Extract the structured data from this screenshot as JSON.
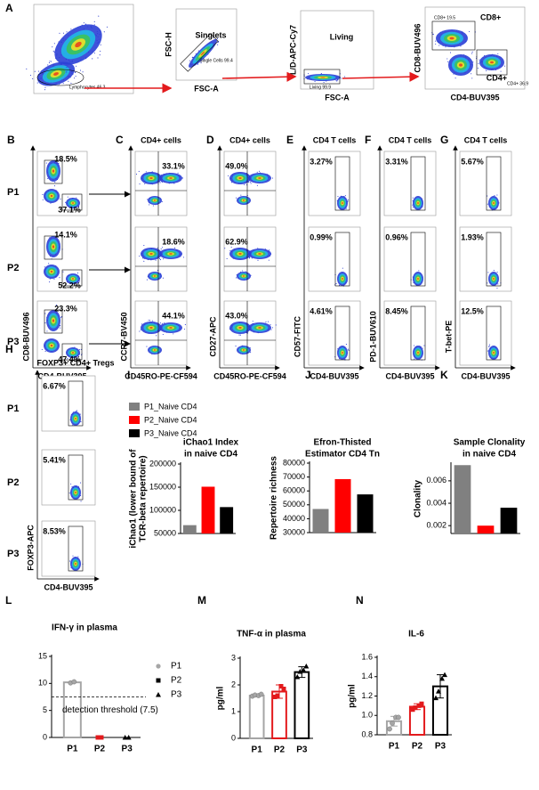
{
  "panel_a": {
    "letter": "A",
    "plots": [
      {
        "gate": "Lymphocytes 46.3"
      },
      {
        "title": "Singlets",
        "ylabel": "FSC-H",
        "xlabel": "FSC-A",
        "gate": "Single Cells 99.4"
      },
      {
        "title": "Living",
        "ylabel": "L/D-APC-Cy7",
        "xlabel": "FSC-A",
        "gate": "Living 99.9"
      },
      {
        "ylabel": "CD8-BUV496",
        "xlabel": "CD4-BUV395",
        "gates": [
          "CD8+ 19.5",
          "CD4+ 36.9"
        ],
        "populations": [
          "CD8+",
          "CD4+"
        ]
      }
    ]
  },
  "rows": [
    "P1",
    "P2",
    "P3"
  ],
  "highlight": {
    "row": 1,
    "color": "#e31a1c"
  },
  "panels": [
    {
      "letter": "B",
      "ylabel": "CD8-BUV496",
      "xlabel": "CD4-BUV395",
      "labels": [
        [
          "18.5%",
          "37.1%"
        ],
        [
          "14.1%",
          "52.2%"
        ],
        [
          "23.3%",
          "47.4%"
        ]
      ]
    },
    {
      "letter": "C",
      "title": "CD4+ cells",
      "ylabel": "CCR7-BV450",
      "xlabel": "CD45RO-PE-CF594",
      "labels": [
        [
          "33.1%"
        ],
        [
          "18.6%"
        ],
        [
          "44.1%"
        ]
      ]
    },
    {
      "letter": "D",
      "title": "CD4+ cells",
      "ylabel": "CD27-APC",
      "xlabel": "CD45RO-PE-CF594",
      "labels": [
        [
          "49.0%"
        ],
        [
          "62.9%"
        ],
        [
          "43.0%"
        ]
      ]
    },
    {
      "letter": "E",
      "title": "CD4 T cells",
      "ylabel": "CD57-FITC",
      "xlabel": "CD4-BUV395",
      "labels": [
        [
          "3.27%"
        ],
        [
          "0.99%"
        ],
        [
          "4.61%"
        ]
      ]
    },
    {
      "letter": "F",
      "title": "CD4 T cells",
      "ylabel": "PD-1-BUV610",
      "xlabel": "CD4-BUV395",
      "labels": [
        [
          "3.31%"
        ],
        [
          "0.96%"
        ],
        [
          "8.45%"
        ]
      ]
    },
    {
      "letter": "G",
      "title": "CD4 T cells",
      "ylabel": "T-bet-PE",
      "xlabel": "CD4-BUV395",
      "labels": [
        [
          "5.67%"
        ],
        [
          "1.93%"
        ],
        [
          "12.5%"
        ]
      ]
    },
    {
      "letter": "H",
      "title": "FOXP3+ CD4+ Tregs",
      "ylabel": "FOXP3-APC",
      "xlabel": "CD4-BUV395",
      "labels": [
        [
          "6.67%"
        ],
        [
          "5.41%"
        ],
        [
          "8.53%"
        ]
      ]
    }
  ],
  "chart_data": [
    {
      "type": "bar",
      "letter": "I",
      "title": [
        "iChao1 Index",
        "in naive CD4"
      ],
      "ylabel": [
        "iChao1 (lower bound of",
        "TCR-beta repertoire)"
      ],
      "values": [
        68000,
        151000,
        107000
      ],
      "colors": [
        "#808080",
        "#ff0000",
        "#000000"
      ],
      "filled": true,
      "ylim": [
        50000,
        200000
      ],
      "yticks": [
        50000,
        100000,
        150000,
        200000
      ],
      "legend": [
        {
          "name": "P1_Naive CD4",
          "color": "#808080"
        },
        {
          "name": "P2_Naive CD4",
          "color": "#ff0000"
        },
        {
          "name": "P3_Naive CD4",
          "color": "#000000"
        }
      ]
    },
    {
      "type": "bar",
      "letter": "J",
      "title": [
        "Efron-Thisted",
        "Estimator CD4 Tn"
      ],
      "ylabel": [
        "Repertoire richness"
      ],
      "values": [
        47000,
        68500,
        57500
      ],
      "colors": [
        "#808080",
        "#ff0000",
        "#000000"
      ],
      "filled": true,
      "ylim": [
        30000,
        80000
      ],
      "yticks": [
        30000,
        40000,
        50000,
        60000,
        70000,
        80000
      ]
    },
    {
      "type": "bar",
      "letter": "K",
      "title": [
        "Sample Clonality",
        "in naive CD4"
      ],
      "ylabel": [
        "Clonality"
      ],
      "values": [
        0.0074,
        0.002,
        0.0036
      ],
      "colors": [
        "#808080",
        "#ff0000",
        "#000000"
      ],
      "filled": true,
      "ylim": [
        0.0013,
        0.0075
      ],
      "yticks": [
        0.002,
        0.004,
        0.006
      ]
    },
    {
      "type": "bar",
      "letter": "L",
      "title": [
        "IFN-γ in plasma"
      ],
      "categories": [
        "P1",
        "P2",
        "P3"
      ],
      "values": [
        10.2,
        0,
        0
      ],
      "errors": [
        0.15,
        0,
        0
      ],
      "points": [
        [
          10.1,
          10.3
        ],
        [
          0,
          0
        ],
        [
          0,
          0
        ]
      ],
      "colors": [
        "#a6a6a6",
        "#e31a1c",
        "#000000"
      ],
      "filled": false,
      "markers": [
        "circle",
        "square",
        "triangle"
      ],
      "ylim": [
        0,
        15
      ],
      "yticks": [
        0,
        5,
        10,
        15
      ],
      "threshold": 7.5,
      "threshold_label": "detection threshold (7.5)",
      "legend": [
        "P1",
        "P2",
        "P3"
      ]
    },
    {
      "type": "bar",
      "letter": "M",
      "title": [
        "TNF-α in plasma"
      ],
      "ylabel": [
        "pg/ml"
      ],
      "categories": [
        "P1",
        "P2",
        "P3"
      ],
      "values": [
        1.6,
        1.75,
        2.48
      ],
      "errors": [
        0.05,
        0.25,
        0.2
      ],
      "points": [
        [
          1.58,
          1.62,
          1.6,
          1.65
        ],
        [
          1.55,
          1.6,
          1.95,
          1.85
        ],
        [
          2.3,
          2.5,
          2.55,
          2.7
        ]
      ],
      "colors": [
        "#a6a6a6",
        "#e31a1c",
        "#000000"
      ],
      "filled": false,
      "markers": [
        "circle",
        "square",
        "triangle"
      ],
      "ylim": [
        0,
        3
      ],
      "yticks": [
        0,
        1,
        2,
        3
      ]
    },
    {
      "type": "bar",
      "letter": "N",
      "title": [
        "IL-6"
      ],
      "ylabel": [
        "pg/ml"
      ],
      "categories": [
        "P1",
        "P2",
        "P3"
      ],
      "values": [
        0.94,
        1.09,
        1.3
      ],
      "errors": [
        0.05,
        0.03,
        0.12
      ],
      "points": [
        [
          0.86,
          0.92,
          0.98,
          0.98
        ],
        [
          1.06,
          1.08,
          1.1,
          1.12
        ],
        [
          1.18,
          1.25,
          1.38,
          1.42
        ]
      ],
      "colors": [
        "#a6a6a6",
        "#e31a1c",
        "#000000"
      ],
      "filled": false,
      "markers": [
        "circle",
        "square",
        "triangle"
      ],
      "ylim": [
        0.8,
        1.6
      ],
      "yticks": [
        0.8,
        {
          "value": 1.0,
          "label": "1.0"
        },
        1.2,
        1.4,
        1.6
      ]
    }
  ]
}
